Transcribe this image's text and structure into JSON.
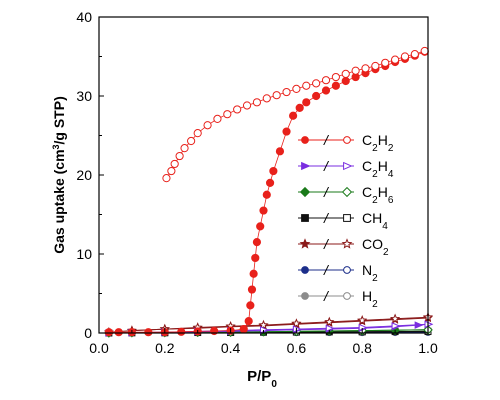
{
  "chart_data": {
    "type": "scatter",
    "title": "",
    "xlabel": "P/P0",
    "ylabel": "Gas uptake (cm3/g STP)",
    "xlim": [
      0.0,
      1.0
    ],
    "ylim": [
      0,
      40
    ],
    "x_ticks": [
      "0.0",
      "0.2",
      "0.4",
      "0.6",
      "0.8",
      "1.0"
    ],
    "y_ticks": [
      "0",
      "10",
      "20",
      "30",
      "40"
    ],
    "grid": false,
    "legend_position": "center-right",
    "series": [
      {
        "name": "C2H2",
        "color": "#e8211b",
        "marker": "circle",
        "adsorption": [
          [
            0.03,
            0.1
          ],
          [
            0.06,
            0.1
          ],
          [
            0.1,
            0.1
          ],
          [
            0.15,
            0.1
          ],
          [
            0.2,
            0.1
          ],
          [
            0.25,
            0.15
          ],
          [
            0.3,
            0.2
          ],
          [
            0.35,
            0.25
          ],
          [
            0.4,
            0.3
          ],
          [
            0.44,
            0.5
          ],
          [
            0.455,
            1.5
          ],
          [
            0.46,
            3.5
          ],
          [
            0.465,
            5.5
          ],
          [
            0.47,
            7.5
          ],
          [
            0.475,
            9.5
          ],
          [
            0.48,
            11.5
          ],
          [
            0.49,
            13.5
          ],
          [
            0.5,
            15.5
          ],
          [
            0.51,
            17.5
          ],
          [
            0.52,
            19.0
          ],
          [
            0.53,
            20.5
          ],
          [
            0.55,
            23.0
          ],
          [
            0.57,
            25.5
          ],
          [
            0.59,
            27.5
          ],
          [
            0.61,
            28.5
          ],
          [
            0.63,
            29.2
          ],
          [
            0.66,
            30.0
          ],
          [
            0.69,
            30.7
          ],
          [
            0.72,
            31.3
          ],
          [
            0.75,
            31.9
          ],
          [
            0.78,
            32.4
          ],
          [
            0.81,
            32.9
          ],
          [
            0.84,
            33.4
          ],
          [
            0.87,
            33.8
          ],
          [
            0.9,
            34.3
          ],
          [
            0.93,
            34.7
          ],
          [
            0.96,
            35.1
          ],
          [
            0.99,
            35.6
          ]
        ],
        "desorption": [
          [
            0.99,
            35.7
          ],
          [
            0.96,
            35.3
          ],
          [
            0.93,
            35.0
          ],
          [
            0.9,
            34.6
          ],
          [
            0.87,
            34.2
          ],
          [
            0.84,
            33.8
          ],
          [
            0.81,
            33.5
          ],
          [
            0.78,
            33.2
          ],
          [
            0.75,
            32.8
          ],
          [
            0.72,
            32.4
          ],
          [
            0.69,
            32.0
          ],
          [
            0.66,
            31.6
          ],
          [
            0.63,
            31.3
          ],
          [
            0.6,
            30.9
          ],
          [
            0.57,
            30.5
          ],
          [
            0.54,
            30.1
          ],
          [
            0.51,
            29.7
          ],
          [
            0.48,
            29.2
          ],
          [
            0.45,
            28.8
          ],
          [
            0.42,
            28.3
          ],
          [
            0.39,
            27.7
          ],
          [
            0.36,
            27.1
          ],
          [
            0.33,
            26.3
          ],
          [
            0.3,
            25.3
          ],
          [
            0.28,
            24.3
          ],
          [
            0.26,
            23.4
          ],
          [
            0.245,
            22.4
          ],
          [
            0.23,
            21.4
          ],
          [
            0.22,
            20.5
          ],
          [
            0.205,
            19.6
          ]
        ]
      },
      {
        "name": "C2H4",
        "color": "#7a2ee0",
        "marker": "triangle-right",
        "adsorption": [
          [
            0.03,
            0.0
          ],
          [
            0.1,
            0.05
          ],
          [
            0.2,
            0.1
          ],
          [
            0.3,
            0.15
          ],
          [
            0.4,
            0.2
          ],
          [
            0.5,
            0.3
          ],
          [
            0.6,
            0.4
          ],
          [
            0.7,
            0.5
          ],
          [
            0.8,
            0.6
          ],
          [
            0.9,
            0.8
          ],
          [
            0.97,
            1.0
          ],
          [
            1.0,
            1.1
          ]
        ],
        "desorption": [
          [
            1.0,
            1.1
          ],
          [
            0.9,
            0.9
          ],
          [
            0.8,
            0.7
          ],
          [
            0.7,
            0.6
          ],
          [
            0.6,
            0.5
          ],
          [
            0.5,
            0.4
          ],
          [
            0.4,
            0.3
          ],
          [
            0.3,
            0.2
          ],
          [
            0.2,
            0.1
          ],
          [
            0.1,
            0.05
          ]
        ]
      },
      {
        "name": "C2H6",
        "color": "#1a7a1a",
        "marker": "diamond",
        "adsorption": [
          [
            0.03,
            0.0
          ],
          [
            0.1,
            0.02
          ],
          [
            0.2,
            0.05
          ],
          [
            0.3,
            0.08
          ],
          [
            0.4,
            0.1
          ],
          [
            0.5,
            0.15
          ],
          [
            0.6,
            0.2
          ],
          [
            0.7,
            0.25
          ],
          [
            0.8,
            0.3
          ],
          [
            0.9,
            0.35
          ],
          [
            1.0,
            0.4
          ]
        ],
        "desorption": [
          [
            1.0,
            0.4
          ],
          [
            0.8,
            0.3
          ],
          [
            0.6,
            0.2
          ],
          [
            0.4,
            0.1
          ],
          [
            0.2,
            0.05
          ]
        ]
      },
      {
        "name": "CH4",
        "color": "#111111",
        "marker": "square",
        "adsorption": [
          [
            0.03,
            0.0
          ],
          [
            0.1,
            0.02
          ],
          [
            0.2,
            0.04
          ],
          [
            0.3,
            0.06
          ],
          [
            0.4,
            0.08
          ],
          [
            0.5,
            0.1
          ],
          [
            0.6,
            0.12
          ],
          [
            0.7,
            0.14
          ],
          [
            0.8,
            0.16
          ],
          [
            0.9,
            0.18
          ],
          [
            1.0,
            0.2
          ]
        ],
        "desorption": [
          [
            1.0,
            0.2
          ],
          [
            0.8,
            0.16
          ],
          [
            0.6,
            0.12
          ],
          [
            0.4,
            0.08
          ],
          [
            0.2,
            0.04
          ]
        ]
      },
      {
        "name": "CO2",
        "color": "#8b1a1a",
        "marker": "star",
        "adsorption": [
          [
            0.03,
            0.1
          ],
          [
            0.1,
            0.3
          ],
          [
            0.2,
            0.5
          ],
          [
            0.3,
            0.6
          ],
          [
            0.4,
            0.8
          ],
          [
            0.5,
            0.9
          ],
          [
            0.6,
            1.1
          ],
          [
            0.7,
            1.3
          ],
          [
            0.8,
            1.5
          ],
          [
            0.9,
            1.7
          ],
          [
            1.0,
            1.9
          ]
        ],
        "desorption": [
          [
            1.0,
            2.0
          ],
          [
            0.9,
            1.8
          ],
          [
            0.8,
            1.6
          ],
          [
            0.7,
            1.4
          ],
          [
            0.6,
            1.2
          ],
          [
            0.5,
            1.0
          ],
          [
            0.4,
            0.85
          ],
          [
            0.3,
            0.7
          ],
          [
            0.2,
            0.5
          ],
          [
            0.1,
            0.3
          ]
        ]
      },
      {
        "name": "N2",
        "color": "#1c2e8a",
        "marker": "circle-dot",
        "adsorption": [
          [
            0.03,
            0.0
          ],
          [
            0.1,
            0.02
          ],
          [
            0.2,
            0.03
          ],
          [
            0.3,
            0.04
          ],
          [
            0.4,
            0.05
          ],
          [
            0.5,
            0.06
          ],
          [
            0.6,
            0.07
          ],
          [
            0.7,
            0.08
          ],
          [
            0.8,
            0.09
          ],
          [
            0.9,
            0.1
          ],
          [
            1.0,
            0.12
          ]
        ],
        "desorption": [
          [
            1.0,
            0.12
          ],
          [
            0.8,
            0.09
          ],
          [
            0.6,
            0.07
          ],
          [
            0.4,
            0.05
          ],
          [
            0.2,
            0.03
          ]
        ]
      },
      {
        "name": "H2",
        "color": "#8c8c8c",
        "marker": "circle",
        "adsorption": [
          [
            0.03,
            0.0
          ],
          [
            0.1,
            0.01
          ],
          [
            0.2,
            0.02
          ],
          [
            0.3,
            0.02
          ],
          [
            0.4,
            0.03
          ],
          [
            0.5,
            0.03
          ],
          [
            0.6,
            0.04
          ],
          [
            0.7,
            0.04
          ],
          [
            0.8,
            0.05
          ],
          [
            0.9,
            0.05
          ],
          [
            1.0,
            0.06
          ]
        ],
        "desorption": [
          [
            1.0,
            0.06
          ],
          [
            0.8,
            0.05
          ],
          [
            0.6,
            0.04
          ],
          [
            0.4,
            0.03
          ],
          [
            0.2,
            0.02
          ]
        ]
      }
    ],
    "legend": {
      "separator": "/",
      "items": [
        {
          "base": "C",
          "sub1": "2",
          "mid": "H",
          "sub2": "2"
        },
        {
          "base": "C",
          "sub1": "2",
          "mid": "H",
          "sub2": "4"
        },
        {
          "base": "C",
          "sub1": "2",
          "mid": "H",
          "sub2": "6"
        },
        {
          "base": "CH",
          "sub1": "4",
          "mid": "",
          "sub2": ""
        },
        {
          "base": "CO",
          "sub1": "2",
          "mid": "",
          "sub2": ""
        },
        {
          "base": "N",
          "sub1": "2",
          "mid": "",
          "sub2": ""
        },
        {
          "base": "H",
          "sub1": "2",
          "mid": "",
          "sub2": ""
        }
      ]
    }
  },
  "axis_text": {
    "x_main": "P/P",
    "x_sub": "0",
    "y_pre": "Gas uptake (cm",
    "y_sup": "3",
    "y_post": "/g STP)"
  }
}
